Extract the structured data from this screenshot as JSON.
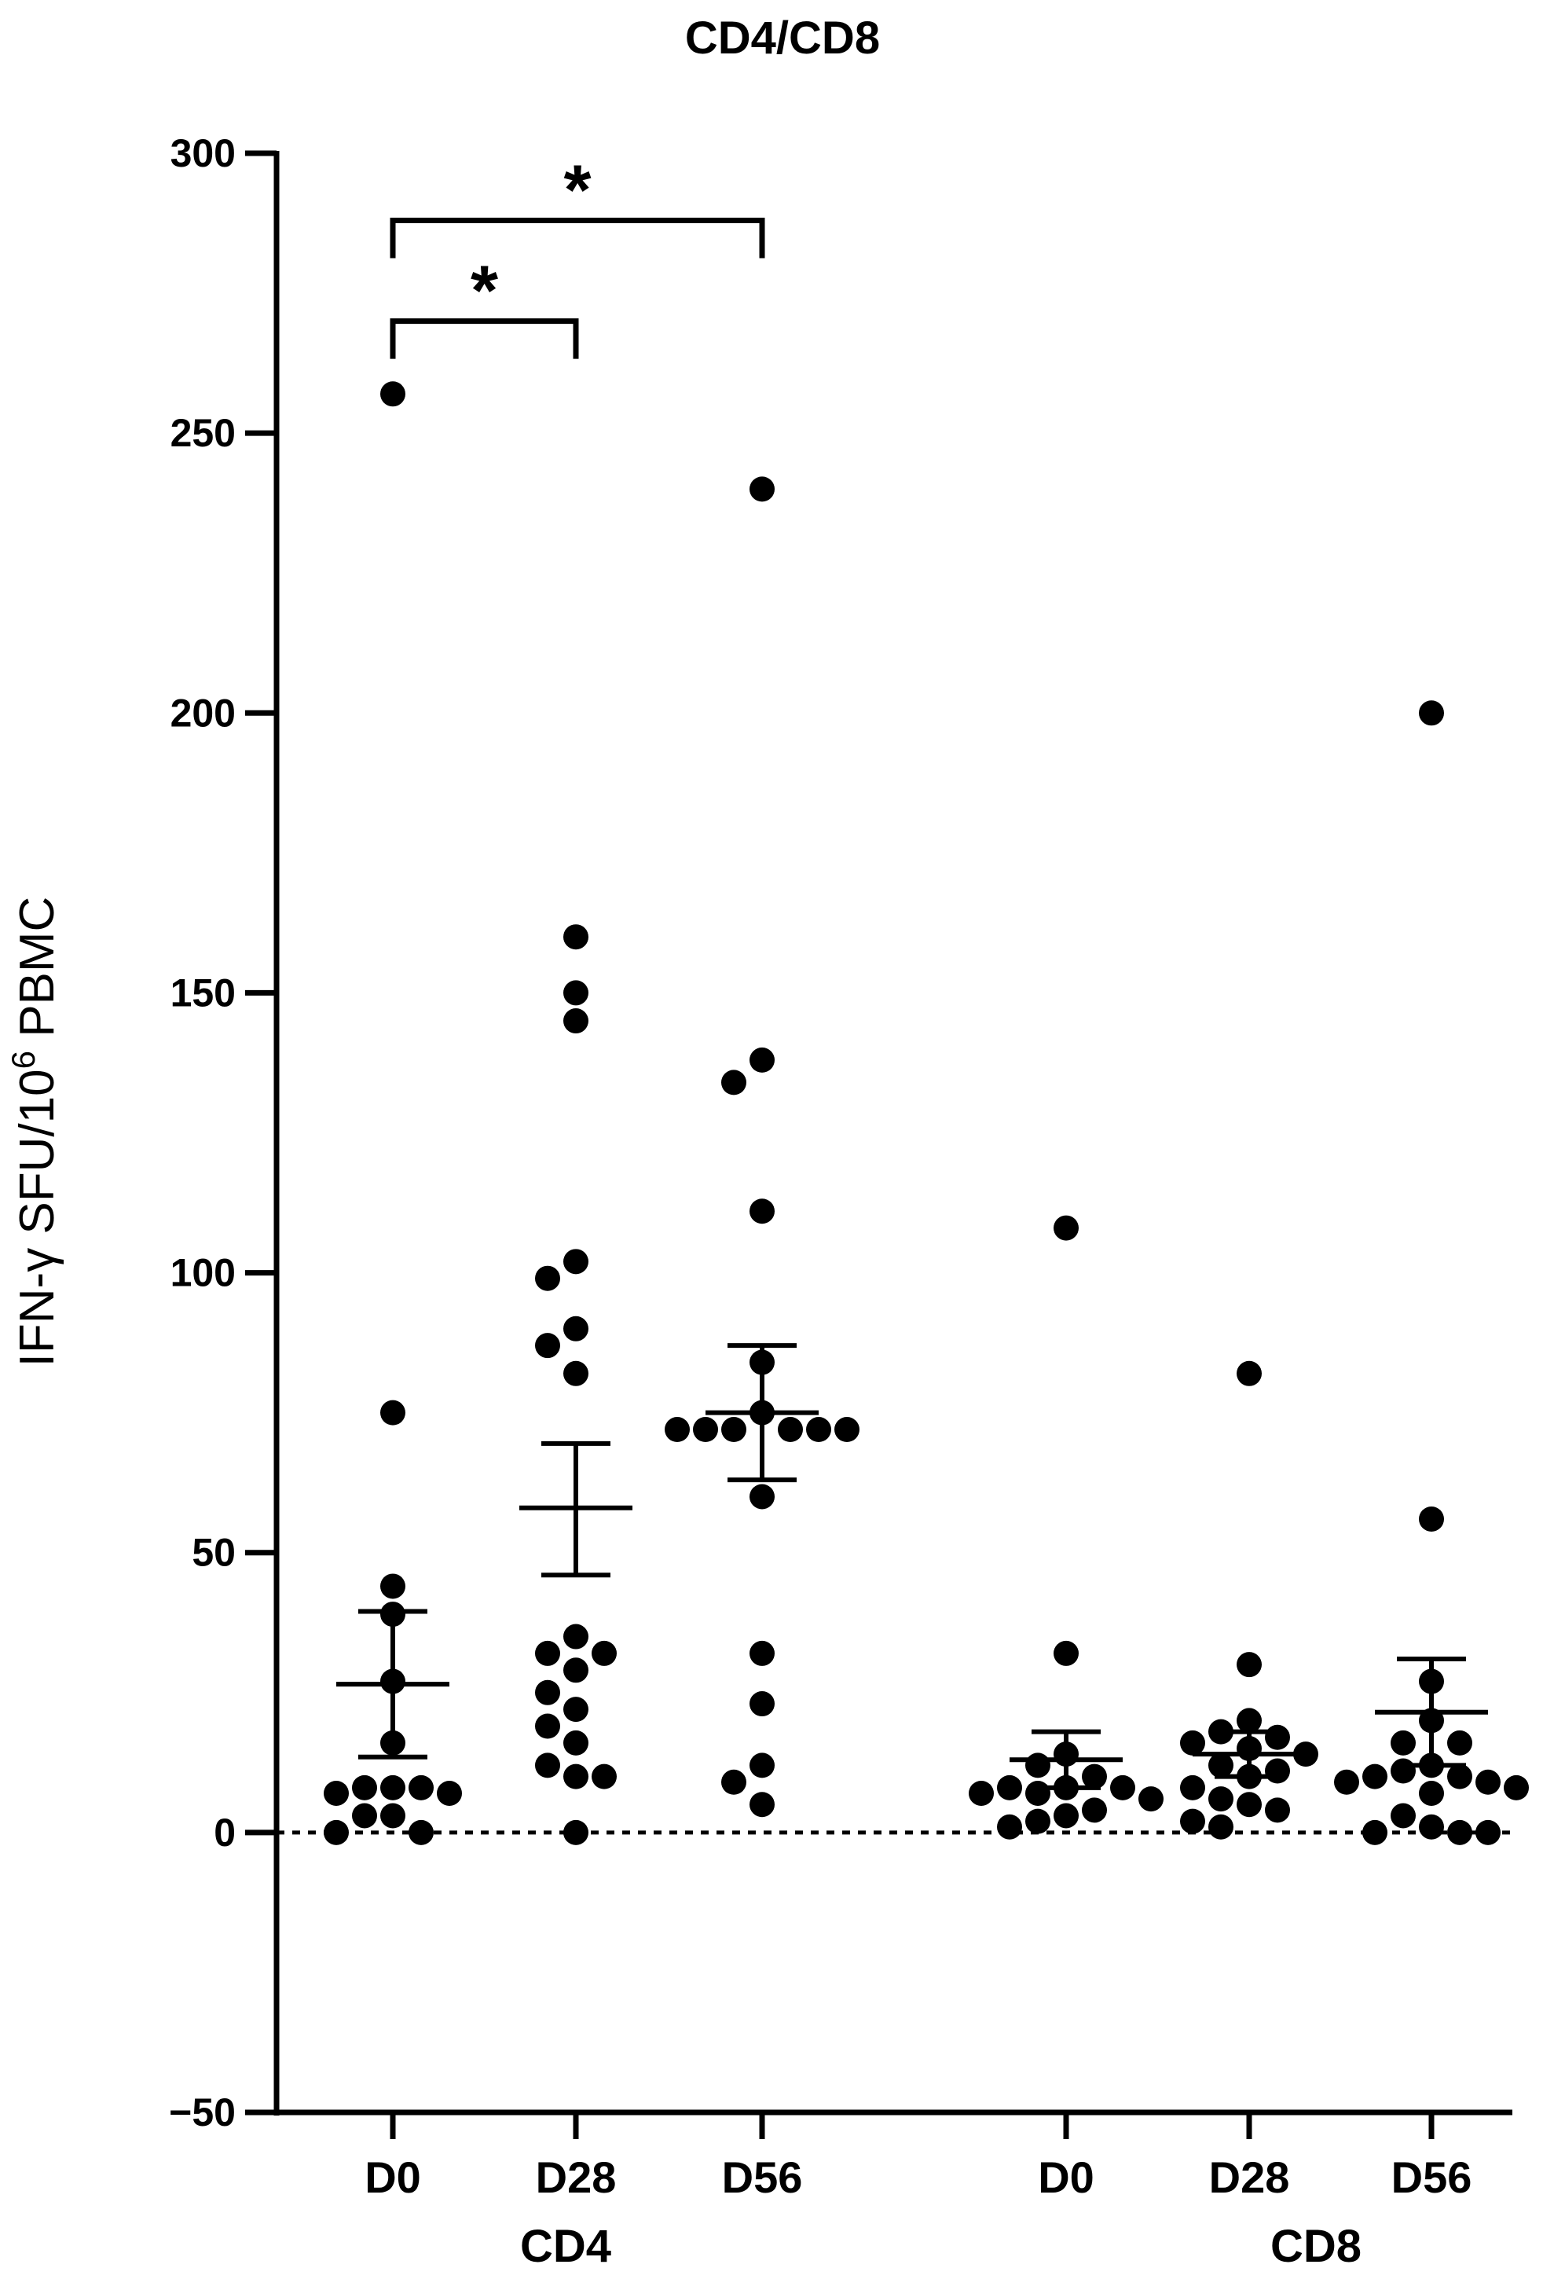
{
  "chart_data": {
    "type": "scatter",
    "title": "CD4/CD8",
    "ylabel_main": "IFN-γ SFU/10",
    "ylabel_sup": "6",
    "ylabel_tail": " PBMC",
    "ylim": [
      -50,
      300
    ],
    "yticks": [
      -50,
      0,
      50,
      100,
      150,
      200,
      250,
      300
    ],
    "ytick_labels": [
      "−50",
      "0",
      "50",
      "100",
      "150",
      "200",
      "250",
      "300"
    ],
    "reference_line": 0,
    "groups": [
      {
        "label": "CD4",
        "categories": [
          "D0",
          "D28",
          "D56"
        ]
      },
      {
        "label": "CD8",
        "categories": [
          "D0",
          "D28",
          "D56"
        ]
      }
    ],
    "series": [
      {
        "group": "CD4",
        "category": "D0",
        "mean": 26.5,
        "sem_low": 13.5,
        "sem_high": 39.5,
        "points": [
          257,
          75,
          44,
          39,
          27,
          16,
          8,
          8,
          8,
          7,
          7,
          3,
          3,
          0,
          0
        ]
      },
      {
        "group": "CD4",
        "category": "D28",
        "mean": 58,
        "sem_low": 46,
        "sem_high": 69.5,
        "points": [
          160,
          150,
          145,
          102,
          99,
          90,
          87,
          82,
          35,
          32,
          32,
          29,
          25,
          22,
          19,
          16,
          12,
          10,
          10,
          0
        ]
      },
      {
        "group": "CD4",
        "category": "D56",
        "mean": 75,
        "sem_low": 63,
        "sem_high": 87,
        "points": [
          240,
          138,
          134,
          111,
          84,
          75,
          72,
          72,
          72,
          72,
          72,
          72,
          60,
          32,
          23,
          12,
          9,
          5
        ]
      },
      {
        "group": "CD8",
        "category": "D0",
        "mean": 13,
        "sem_low": 8,
        "sem_high": 18,
        "points": [
          108,
          32,
          14,
          12,
          10,
          8,
          8,
          8,
          7,
          7,
          6,
          4,
          3,
          2,
          1
        ]
      },
      {
        "group": "CD8",
        "category": "D28",
        "mean": 14,
        "sem_low": 10,
        "sem_high": 18,
        "points": [
          82,
          30,
          20,
          18,
          17,
          16,
          15,
          14,
          12,
          11,
          10,
          8,
          6,
          5,
          4,
          2,
          1
        ]
      },
      {
        "group": "CD8",
        "category": "D56",
        "mean": 21.5,
        "sem_low": 12,
        "sem_high": 31,
        "points": [
          200,
          56,
          27,
          20,
          16,
          16,
          12,
          11,
          10,
          10,
          9,
          9,
          8,
          7,
          3,
          1,
          0,
          0,
          0
        ]
      }
    ],
    "significance": [
      {
        "from": "CD4 D0",
        "to": "CD4 D28",
        "label": "*",
        "y": 270
      },
      {
        "from": "CD4 D0",
        "to": "CD4 D56",
        "label": "*",
        "y": 288
      }
    ]
  }
}
